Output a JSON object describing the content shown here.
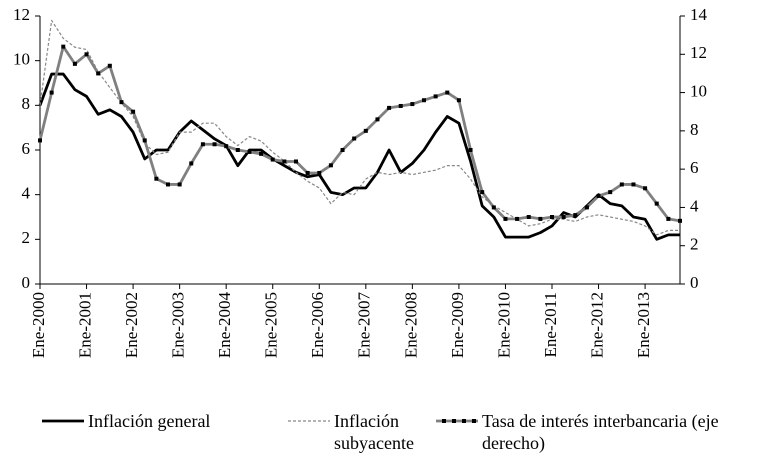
{
  "chart_data": {
    "type": "line",
    "categories": [
      "Ene-2000",
      null,
      null,
      null,
      "Ene-2001",
      null,
      null,
      null,
      "Ene-2002",
      null,
      null,
      null,
      "Ene-2003",
      null,
      null,
      null,
      "Ene-2004",
      null,
      null,
      null,
      "Ene-2005",
      null,
      null,
      null,
      "Ene-2006",
      null,
      null,
      null,
      "Ene-2007",
      null,
      null,
      null,
      "Ene-2008",
      null,
      null,
      null,
      "Ene-2009",
      null,
      null,
      null,
      "Ene-2010",
      null,
      null,
      null,
      "Ene-2011",
      null,
      null,
      null,
      "Ene-2012",
      null,
      null,
      null,
      "Ene-2013",
      null,
      null,
      null
    ],
    "series": [
      {
        "name": "Inflación general",
        "color": "#000000",
        "style": "solid",
        "values": [
          8.0,
          9.4,
          9.4,
          8.7,
          8.4,
          7.6,
          7.8,
          7.5,
          6.8,
          5.6,
          6.0,
          6.0,
          6.8,
          7.3,
          6.9,
          6.5,
          6.2,
          5.3,
          6.0,
          6.0,
          5.6,
          5.3,
          5.0,
          4.8,
          4.9,
          4.1,
          4.0,
          4.3,
          4.3,
          5.0,
          6.0,
          5.0,
          5.4,
          6.0,
          6.8,
          7.5,
          7.2,
          5.5,
          3.5,
          3.0,
          2.1,
          2.1,
          2.1,
          2.3,
          2.6,
          3.2,
          3.0,
          3.5,
          4.0,
          3.6,
          3.5,
          3.0,
          2.9,
          2.0,
          2.2,
          2.2
        ]
      },
      {
        "name": "Inflación subyacente",
        "color": "#888888",
        "style": "dashed",
        "values": [
          8.0,
          11.8,
          11.0,
          10.6,
          10.5,
          9.5,
          8.8,
          8.1,
          7.5,
          6.3,
          5.8,
          5.9,
          6.8,
          6.8,
          7.2,
          7.2,
          6.6,
          6.2,
          6.6,
          6.4,
          5.9,
          5.5,
          5.0,
          4.6,
          4.3,
          3.6,
          4.1,
          4.0,
          4.7,
          5.0,
          4.9,
          5.0,
          4.9,
          5.0,
          5.1,
          5.3,
          5.3,
          4.7,
          3.9,
          3.5,
          3.2,
          2.9,
          2.6,
          2.7,
          2.9,
          2.9,
          2.8,
          3.0,
          3.1,
          3.0,
          2.9,
          2.8,
          2.6,
          2.2,
          2.4,
          2.4
        ]
      },
      {
        "name": "Tasa de interés interbancaria (eje derecho)",
        "color": "#808080",
        "style": "solid",
        "marker": "square",
        "axis": "y2",
        "values": [
          7.5,
          10.0,
          12.4,
          11.5,
          12.0,
          11.0,
          11.4,
          9.5,
          9.0,
          7.5,
          5.5,
          5.2,
          5.2,
          6.3,
          7.3,
          7.3,
          7.2,
          7.0,
          6.9,
          6.8,
          6.5,
          6.4,
          6.4,
          5.8,
          5.8,
          6.2,
          7.0,
          7.6,
          8.0,
          8.6,
          9.2,
          9.3,
          9.4,
          9.6,
          9.8,
          10.0,
          9.6,
          7.0,
          4.8,
          4.0,
          3.4,
          3.4,
          3.5,
          3.4,
          3.5,
          3.5,
          3.6,
          4.0,
          4.6,
          4.8,
          5.2,
          5.2,
          5.0,
          4.2,
          3.4,
          3.3
        ]
      }
    ],
    "ylim": [
      0,
      12
    ],
    "yticks": [
      0,
      2,
      4,
      6,
      8,
      10,
      12
    ],
    "y2lim": [
      0,
      14
    ],
    "y2ticks": [
      0,
      2,
      4,
      6,
      8,
      10,
      12,
      14
    ],
    "grid": false
  }
}
